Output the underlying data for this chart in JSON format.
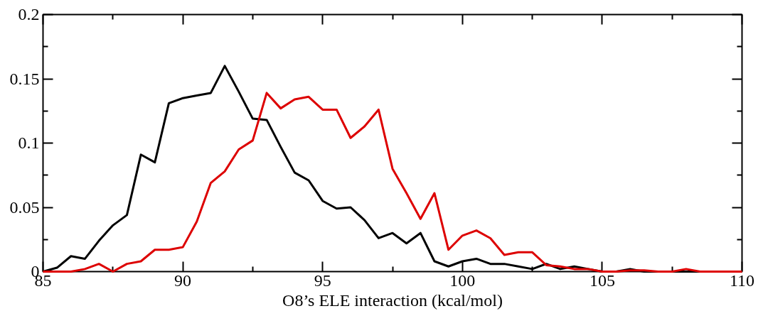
{
  "chart_data": {
    "type": "line",
    "xlabel": "O8’s ELE interaction (kcal/mol)",
    "x": [
      85,
      85.5,
      86,
      86.5,
      87,
      87.5,
      88,
      88.5,
      89,
      89.5,
      90,
      90.5,
      91,
      91.5,
      92,
      92.5,
      93,
      93.5,
      94,
      94.5,
      95,
      95.5,
      96,
      96.5,
      97,
      97.5,
      98,
      98.5,
      99,
      99.5,
      100,
      100.5,
      101,
      101.5,
      102,
      102.5,
      103,
      103.5,
      104,
      104.5,
      105,
      105.5,
      106,
      106.5,
      107,
      107.5,
      108,
      108.5,
      109,
      109.5,
      110
    ],
    "series": [
      {
        "color": "#000000",
        "values": [
          0,
          0.003,
          0.012,
          0.01,
          0.024,
          0.036,
          0.044,
          0.091,
          0.085,
          0.131,
          0.135,
          0.137,
          0.139,
          0.16,
          0.14,
          0.119,
          0.118,
          0.097,
          0.077,
          0.071,
          0.055,
          0.049,
          0.05,
          0.04,
          0.026,
          0.03,
          0.022,
          0.03,
          0.008,
          0.004,
          0.008,
          0.01,
          0.006,
          0.006,
          0.004,
          0.002,
          0.006,
          0.002,
          0.004,
          0.002,
          0,
          0,
          0.002,
          0,
          0,
          0,
          0,
          0,
          0,
          0,
          0
        ]
      },
      {
        "color": "#dd0000",
        "values": [
          0,
          0,
          0,
          0.002,
          0.006,
          0,
          0.006,
          0.008,
          0.017,
          0.017,
          0.019,
          0.039,
          0.069,
          0.078,
          0.095,
          0.102,
          0.139,
          0.127,
          0.134,
          0.136,
          0.126,
          0.126,
          0.104,
          0.113,
          0.126,
          0.08,
          0.061,
          0.041,
          0.061,
          0.017,
          0.028,
          0.032,
          0.026,
          0.013,
          0.015,
          0.015,
          0.005,
          0.004,
          0.002,
          0.002,
          0,
          0,
          0.001,
          0.001,
          0,
          0,
          0.002,
          0,
          0,
          0,
          0
        ]
      }
    ],
    "xlim": [
      85,
      110
    ],
    "xticks": [
      85,
      90,
      95,
      100,
      105,
      110
    ],
    "ylim": [
      0,
      0.2
    ],
    "yticks": [
      0,
      0.05,
      0.1,
      0.15,
      0.2
    ],
    "grid": false,
    "line_style": "solid"
  }
}
